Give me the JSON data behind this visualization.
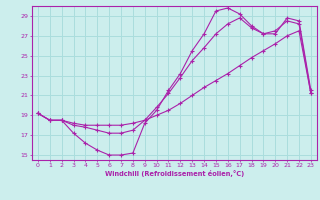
{
  "xlabel": "Windchill (Refroidissement éolien,°C)",
  "xlim": [
    -0.5,
    23.5
  ],
  "ylim": [
    14.5,
    30
  ],
  "xticks": [
    0,
    1,
    2,
    3,
    4,
    5,
    6,
    7,
    8,
    9,
    10,
    11,
    12,
    13,
    14,
    15,
    16,
    17,
    18,
    19,
    20,
    21,
    22,
    23
  ],
  "yticks": [
    15,
    17,
    19,
    21,
    23,
    25,
    27,
    29
  ],
  "bg_color": "#cceeed",
  "line_color": "#aa22aa",
  "grid_color": "#aadddd",
  "line1_x": [
    0,
    1,
    2,
    3,
    4,
    5,
    6,
    7,
    8,
    9,
    10,
    11,
    12,
    13,
    14,
    15,
    16,
    17,
    18,
    19,
    20,
    21,
    22,
    23
  ],
  "line1_y": [
    19.2,
    18.5,
    18.5,
    18.2,
    18.0,
    18.0,
    18.0,
    18.0,
    18.2,
    18.5,
    19.0,
    19.5,
    20.2,
    21.0,
    21.8,
    22.5,
    23.2,
    24.0,
    24.8,
    25.5,
    26.2,
    27.0,
    27.5,
    21.2
  ],
  "line2_x": [
    0,
    1,
    2,
    3,
    4,
    5,
    6,
    7,
    8,
    9,
    10,
    11,
    12,
    13,
    14,
    15,
    16,
    17,
    18,
    19,
    20,
    21,
    22,
    23
  ],
  "line2_y": [
    19.2,
    18.5,
    18.5,
    18.0,
    17.8,
    17.5,
    17.2,
    17.2,
    17.5,
    18.5,
    19.8,
    21.2,
    22.8,
    24.5,
    25.8,
    27.2,
    28.2,
    28.8,
    27.8,
    27.2,
    27.5,
    28.5,
    28.2,
    21.2
  ],
  "line3_x": [
    0,
    1,
    2,
    3,
    4,
    5,
    6,
    7,
    8,
    9,
    10,
    11,
    12,
    13,
    14,
    15,
    16,
    17,
    18,
    19,
    20,
    21,
    22,
    23
  ],
  "line3_y": [
    19.2,
    18.5,
    18.5,
    17.2,
    16.2,
    15.5,
    15.0,
    15.0,
    15.2,
    18.2,
    19.5,
    21.5,
    23.2,
    25.5,
    27.2,
    29.5,
    29.8,
    29.2,
    28.0,
    27.2,
    27.2,
    28.8,
    28.5,
    21.5
  ]
}
